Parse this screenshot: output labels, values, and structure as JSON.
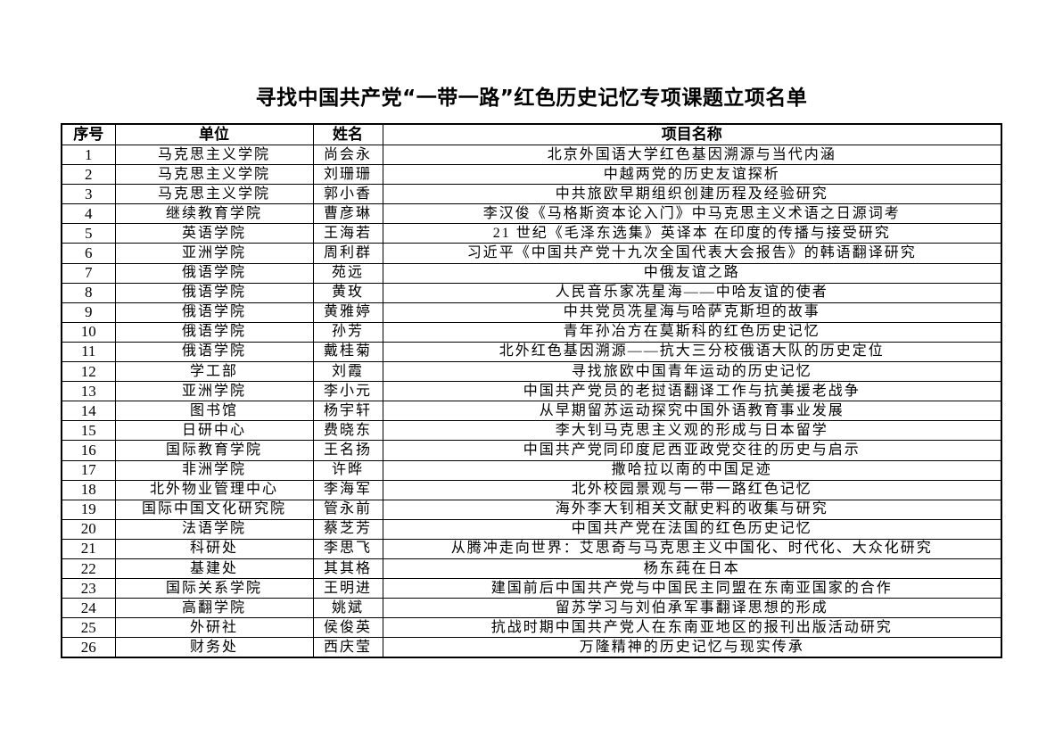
{
  "title": "寻找中国共产党“一带一路”红色历史记忆专项课题立项名单",
  "headers": [
    "序号",
    "单位",
    "姓名",
    "项目名称"
  ],
  "rows": [
    [
      "1",
      "马克思主义学院",
      "尚会永",
      "北京外国语大学红色基因溯源与当代内涵"
    ],
    [
      "2",
      "马克思主义学院",
      "刘珊珊",
      "中越两党的历史友谊探析"
    ],
    [
      "3",
      "马克思主义学院",
      "郭小香",
      "中共旅欧早期组织创建历程及经验研究"
    ],
    [
      "4",
      "继续教育学院",
      "曹彦琳",
      "李汉俊《马格斯资本论入门》中马克思主义术语之日源词考"
    ],
    [
      "5",
      "英语学院",
      "王海若",
      "21 世纪《毛泽东选集》英译本 在印度的传播与接受研究"
    ],
    [
      "6",
      "亚洲学院",
      "周利群",
      "习近平《中国共产党十九次全国代表大会报告》的韩语翻译研究"
    ],
    [
      "7",
      "俄语学院",
      "苑远",
      "中俄友谊之路"
    ],
    [
      "8",
      "俄语学院",
      "黄玫",
      "人民音乐家冼星海——中哈友谊的使者"
    ],
    [
      "9",
      "俄语学院",
      "黄雅婷",
      "中共党员冼星海与哈萨克斯坦的故事"
    ],
    [
      "10",
      "俄语学院",
      "孙芳",
      "青年孙冶方在莫斯科的红色历史记忆"
    ],
    [
      "11",
      "俄语学院",
      "戴桂菊",
      "北外红色基因溯源——抗大三分校俄语大队的历史定位"
    ],
    [
      "12",
      "学工部",
      "刘霞",
      "寻找旅欧中国青年运动的历史记忆"
    ],
    [
      "13",
      "亚洲学院",
      "李小元",
      "中国共产党员的老挝语翻译工作与抗美援老战争"
    ],
    [
      "14",
      "图书馆",
      "杨宇轩",
      "从早期留苏运动探究中国外语教育事业发展"
    ],
    [
      "15",
      "日研中心",
      "费晓东",
      "李大钊马克思主义观的形成与日本留学"
    ],
    [
      "16",
      "国际教育学院",
      "王名扬",
      "中国共产党同印度尼西亚政党交往的历史与启示"
    ],
    [
      "17",
      "非洲学院",
      "许晔",
      "撒哈拉以南的中国足迹"
    ],
    [
      "18",
      "北外物业管理中心",
      "李海军",
      "北外校园景观与一带一路红色记忆"
    ],
    [
      "19",
      "国际中国文化研究院",
      "管永前",
      "海外李大钊相关文献史料的收集与研究"
    ],
    [
      "20",
      "法语学院",
      "蔡芝芳",
      "中国共产党在法国的红色历史记忆"
    ],
    [
      "21",
      "科研处",
      "李思飞",
      "从腾冲走向世界：艾思奇与马克思主义中国化、时代化、大众化研究"
    ],
    [
      "22",
      "基建处",
      "其其格",
      "杨东莼在日本"
    ],
    [
      "23",
      "国际关系学院",
      "王明进",
      "建国前后中国共产党与中国民主同盟在东南亚国家的合作"
    ],
    [
      "24",
      "高翻学院",
      "姚斌",
      "留苏学习与刘伯承军事翻译思想的形成"
    ],
    [
      "25",
      "外研社",
      "侯俊英",
      "抗战时期中国共产党人在东南亚地区的报刊出版活动研究"
    ],
    [
      "26",
      "财务处",
      "西庆莹",
      "万隆精神的历史记忆与现实传承"
    ]
  ]
}
